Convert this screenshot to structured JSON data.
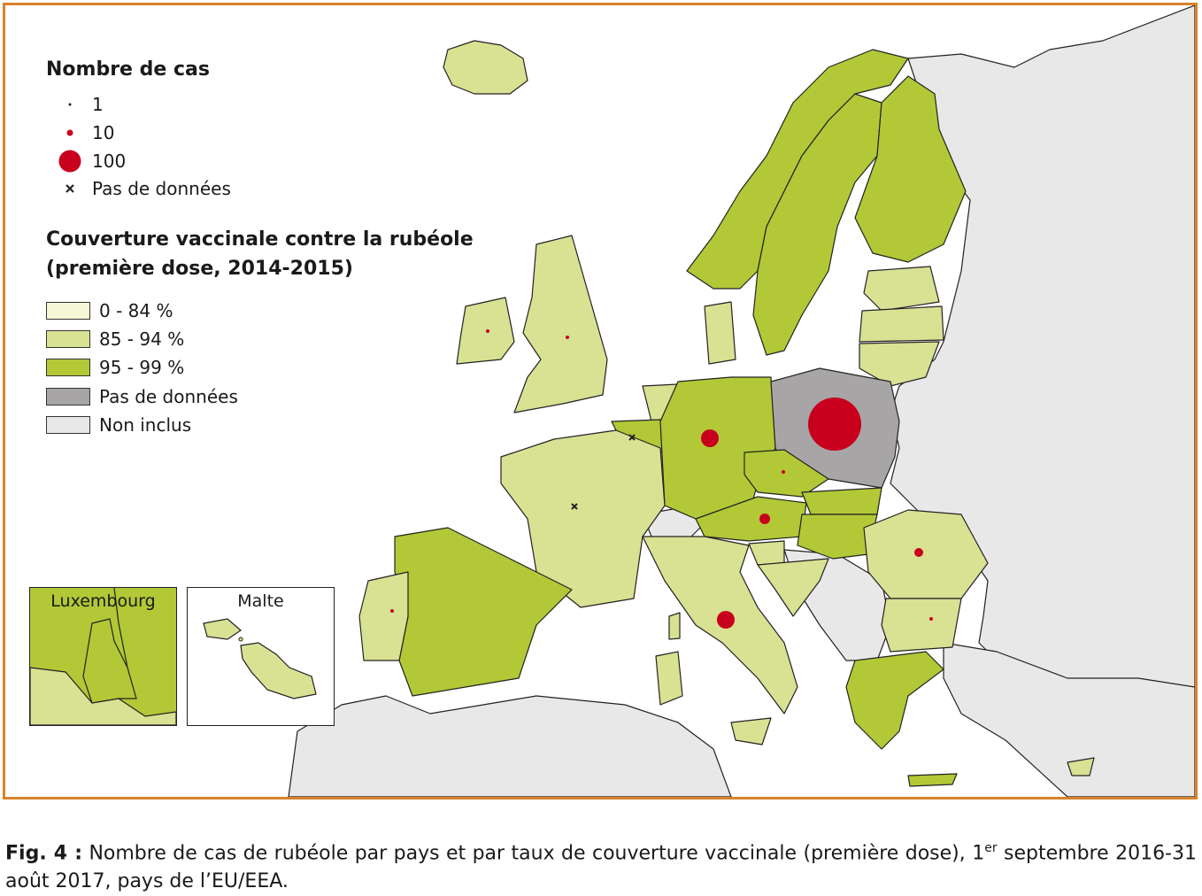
{
  "legend": {
    "cases_title": "Nombre de cas",
    "cases": [
      {
        "label": "1",
        "symbol": "dot-small"
      },
      {
        "label": "10",
        "symbol": "dot-medium"
      },
      {
        "label": "100",
        "symbol": "dot-large"
      },
      {
        "label": "Pas de données",
        "symbol": "cross"
      }
    ],
    "coverage_title_line1": "Couverture vaccinale contre la rubéole",
    "coverage_title_line2": "(première dose, 2014-2015)",
    "coverage": [
      {
        "label": "0 - 84 %",
        "color": "#f6f7d6"
      },
      {
        "label": "85 - 94 %",
        "color": "#d9e193"
      },
      {
        "label": "95 - 99 %",
        "color": "#b2c836"
      },
      {
        "label": "Pas de données",
        "color": "#a8a5a6"
      },
      {
        "label": "Non inclus",
        "color": "#e8e8e9"
      }
    ]
  },
  "insets": {
    "luxembourg": "Luxembourg",
    "malta": "Malte"
  },
  "colors": {
    "frame": "#d9822b",
    "sea": "#ffffff",
    "case_dot": "#c8001e",
    "border": "#222222"
  },
  "caption": {
    "label": "Fig. 4 :",
    "text_before_sup": "Nombre de cas de rubéole par pays et par taux de couverture vaccinale (première dose), 1",
    "sup": "er",
    "text_after_sup": " septembre 2016-31 août 2017, pays de l’EU/EEA."
  }
}
